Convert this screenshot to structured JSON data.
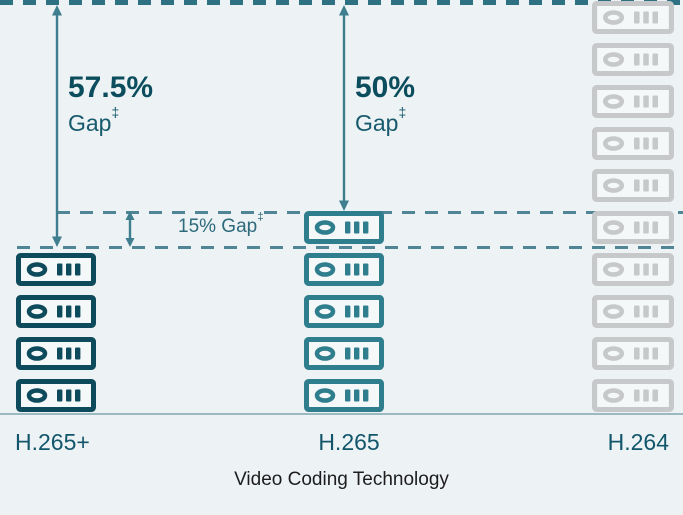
{
  "chart_data": {
    "type": "bar",
    "title": "",
    "categories": [
      "H.265+",
      "H.265",
      "H.264"
    ],
    "values": [
      4,
      5,
      10
    ],
    "value_unit": "stacked storage-device icons (relative storage requirement)",
    "xlabel": "Video Coding Technology",
    "ylabel": "",
    "legend": false,
    "grid": false,
    "annotations": [
      {
        "text": "57.5% Gap‡",
        "meaning": "gap between H.265+ stack top and H.264 stack top"
      },
      {
        "text": "50% Gap‡",
        "meaning": "gap between H.265 stack top and H.264 stack top"
      },
      {
        "text": "15% Gap‡",
        "meaning": "gap between H.265+ stack top and H.265 stack top"
      }
    ]
  },
  "columns": [
    {
      "id": "h265plus",
      "label": "H.265+",
      "units": 4,
      "color": "#0d4a5b"
    },
    {
      "id": "h265",
      "label": "H.265",
      "units": 5,
      "color": "#2f7e8e"
    },
    {
      "id": "h264",
      "label": "H.264",
      "units": 10,
      "color": "#c6c8c9"
    }
  ],
  "gaps": {
    "left": {
      "value": "57.5%",
      "label": "Gap",
      "mark": "‡"
    },
    "middle": {
      "value": "50%",
      "label": "Gap",
      "mark": "‡"
    },
    "small": {
      "label": "15% Gap",
      "mark": "‡"
    }
  },
  "axis": {
    "xlabel": "Video Coding Technology",
    "tick_labels": [
      "H.265+",
      "H.265",
      "H.264"
    ]
  },
  "colors": {
    "background": "#edf2f4",
    "dash_top": "#2e7183",
    "dash_mid": "#4f8595",
    "arrow": "#3f7e8f",
    "pct_text": "#0b4d5d",
    "gap_text": "#185a6d",
    "small_gap_text": "#2c6a7c",
    "tick_text": "#11566b",
    "xlabel_text": "#1d1d1d",
    "axis_line": "#9cb9c2",
    "icon_fill": "#f5f8f9"
  }
}
